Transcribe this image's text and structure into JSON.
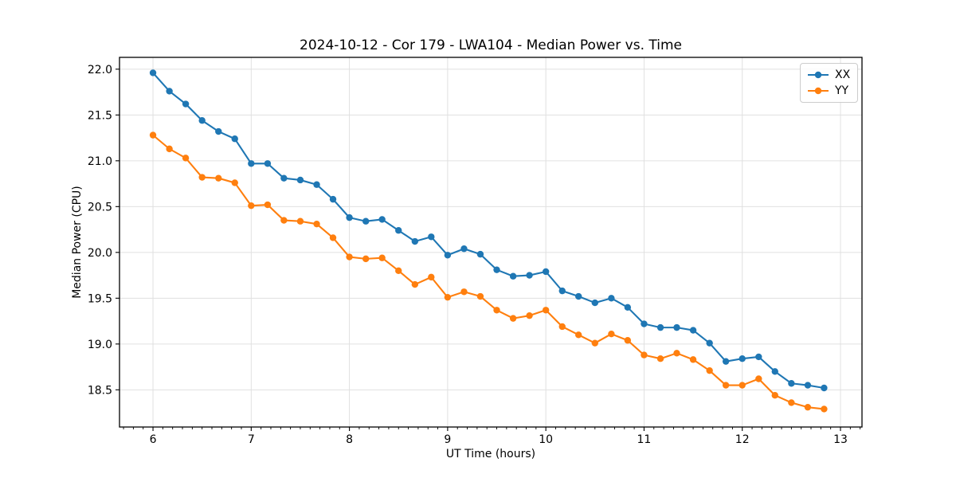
{
  "chart_data": {
    "type": "line",
    "title": "2024-10-12 - Cor 179 - LWA104 - Median Power vs. Time",
    "xlabel": "UT Time (hours)",
    "ylabel": "Median Power (CPU)",
    "x": [
      6.0,
      6.167,
      6.333,
      6.5,
      6.667,
      6.833,
      7.0,
      7.167,
      7.333,
      7.5,
      7.667,
      7.833,
      8.0,
      8.167,
      8.333,
      8.5,
      8.667,
      8.833,
      9.0,
      9.167,
      9.333,
      9.5,
      9.667,
      9.833,
      10.0,
      10.167,
      10.333,
      10.5,
      10.667,
      10.833,
      11.0,
      11.167,
      11.333,
      11.5,
      11.667,
      11.833,
      12.0,
      12.167,
      12.333,
      12.5,
      12.667,
      12.833
    ],
    "series": [
      {
        "name": "XX",
        "color": "#1f77b4",
        "values": [
          21.96,
          21.76,
          21.62,
          21.44,
          21.32,
          21.24,
          20.97,
          20.97,
          20.81,
          20.79,
          20.74,
          20.58,
          20.38,
          20.34,
          20.36,
          20.24,
          20.12,
          20.17,
          19.97,
          20.04,
          19.98,
          19.81,
          19.74,
          19.75,
          19.79,
          19.58,
          19.52,
          19.45,
          19.5,
          19.4,
          19.22,
          19.18,
          19.18,
          19.15,
          19.01,
          18.81,
          18.84,
          18.86,
          18.7,
          18.57,
          18.55,
          18.52
        ]
      },
      {
        "name": "YY",
        "color": "#ff7f0e",
        "values": [
          21.28,
          21.13,
          21.03,
          20.82,
          20.81,
          20.76,
          20.51,
          20.52,
          20.35,
          20.34,
          20.31,
          20.16,
          19.95,
          19.93,
          19.94,
          19.8,
          19.65,
          19.73,
          19.51,
          19.57,
          19.52,
          19.37,
          19.28,
          19.31,
          19.37,
          19.19,
          19.1,
          19.01,
          19.11,
          19.04,
          18.88,
          18.84,
          18.9,
          18.83,
          18.71,
          18.55,
          18.55,
          18.62,
          18.44,
          18.36,
          18.31,
          18.29
        ]
      }
    ],
    "xlim": [
      5.659,
      13.219
    ],
    "ylim": [
      18.094,
      22.129
    ],
    "xticks": [
      6,
      7,
      8,
      9,
      10,
      11,
      12,
      13
    ],
    "xtick_labels": [
      "6",
      "7",
      "8",
      "9",
      "10",
      "11",
      "12",
      "13"
    ],
    "yticks": [
      18.5,
      19.0,
      19.5,
      20.0,
      20.5,
      21.0,
      21.5,
      22.0
    ],
    "ytick_labels": [
      "18.5",
      "19.0",
      "19.5",
      "20.0",
      "20.5",
      "21.0",
      "21.5",
      "22.0"
    ],
    "minor_xtick_step": 0.1,
    "grid": true,
    "legend_position": "upper right",
    "colors": {
      "grid": "#e0e0e0",
      "axis": "#000000",
      "background": "#ffffff"
    }
  }
}
